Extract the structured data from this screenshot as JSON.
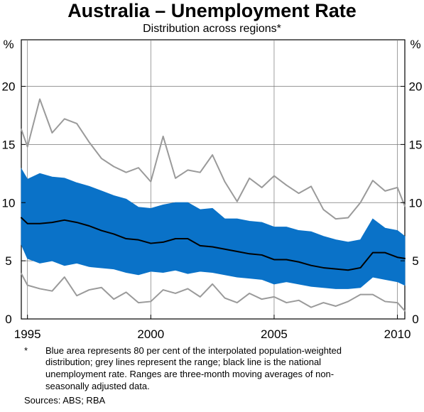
{
  "chart_data": {
    "type": "area",
    "title": "Australia – Unemployment Rate",
    "subtitle": "Distribution across regions*",
    "left_unit": "%",
    "right_unit": "%",
    "x_ticks": [
      "1995",
      "2000",
      "2005",
      "2010"
    ],
    "y_ticks": [
      0,
      5,
      10,
      15,
      20
    ],
    "ylim": [
      0,
      24
    ],
    "xlim": [
      1994.75,
      2010.3
    ],
    "grid": true,
    "footnote_marker": "*",
    "footnote_lines": [
      "Blue area represents 80 per cent of the interpolated population-weighted",
      "distribution; grey lines represent the range; black line is the national",
      "unemployment rate. Ranges are three-month moving averages of non-",
      "seasonally adjusted data."
    ],
    "sources": "Sources: ABS; RBA",
    "colors": {
      "area": "#0a72c8",
      "range": "#9a9a9a",
      "national": "#000000",
      "grid": "#777777"
    },
    "series": [
      {
        "key": "max",
        "x": [
          1994.75,
          1995.0,
          1995.5,
          1996.0,
          1996.5,
          1997.0,
          1997.5,
          1998.0,
          1998.5,
          1999.0,
          1999.5,
          2000.0,
          2000.5,
          2001.0,
          2001.5,
          2002.0,
          2002.5,
          2003.0,
          2003.5,
          2004.0,
          2004.5,
          2005.0,
          2005.5,
          2006.0,
          2006.5,
          2007.0,
          2007.5,
          2008.0,
          2008.5,
          2009.0,
          2009.5,
          2010.0,
          2010.3
        ],
        "values": [
          16.3,
          14.8,
          18.9,
          16.0,
          17.2,
          16.8,
          15.2,
          13.8,
          13.1,
          12.6,
          13.0,
          11.8,
          15.7,
          12.1,
          12.8,
          12.6,
          14.1,
          11.8,
          10.1,
          12.1,
          11.3,
          12.3,
          11.5,
          10.8,
          11.4,
          9.4,
          8.6,
          8.7,
          10.0,
          11.9,
          11.0,
          11.3,
          9.7
        ]
      },
      {
        "key": "p90",
        "x": [
          1994.75,
          1995.0,
          1995.5,
          1996.0,
          1996.5,
          1997.0,
          1997.5,
          1998.0,
          1998.5,
          1999.0,
          1999.5,
          2000.0,
          2000.5,
          2001.0,
          2001.5,
          2002.0,
          2002.5,
          2003.0,
          2003.5,
          2004.0,
          2004.5,
          2005.0,
          2005.5,
          2006.0,
          2006.5,
          2007.0,
          2007.5,
          2008.0,
          2008.5,
          2009.0,
          2009.5,
          2010.0,
          2010.3
        ],
        "values": [
          12.9,
          12.0,
          12.5,
          12.2,
          12.1,
          11.7,
          11.4,
          11.0,
          10.6,
          10.3,
          9.6,
          9.5,
          9.8,
          10.0,
          10.0,
          9.4,
          9.5,
          8.6,
          8.6,
          8.4,
          8.3,
          7.9,
          7.9,
          7.6,
          7.5,
          7.1,
          6.8,
          6.6,
          6.8,
          8.6,
          7.8,
          7.6,
          7.1
        ]
      },
      {
        "key": "national",
        "x": [
          1994.75,
          1995.0,
          1995.5,
          1996.0,
          1996.5,
          1997.0,
          1997.5,
          1998.0,
          1998.5,
          1999.0,
          1999.5,
          2000.0,
          2000.5,
          2001.0,
          2001.5,
          2002.0,
          2002.5,
          2003.0,
          2003.5,
          2004.0,
          2004.5,
          2005.0,
          2005.5,
          2006.0,
          2006.5,
          2007.0,
          2007.5,
          2008.0,
          2008.5,
          2009.0,
          2009.5,
          2010.0,
          2010.3
        ],
        "values": [
          8.7,
          8.2,
          8.2,
          8.3,
          8.5,
          8.3,
          8.0,
          7.6,
          7.3,
          6.9,
          6.8,
          6.5,
          6.6,
          6.9,
          6.9,
          6.3,
          6.2,
          6.0,
          5.8,
          5.6,
          5.5,
          5.1,
          5.1,
          4.9,
          4.6,
          4.4,
          4.3,
          4.2,
          4.4,
          5.7,
          5.7,
          5.3,
          5.2
        ]
      },
      {
        "key": "p10",
        "x": [
          1994.75,
          1995.0,
          1995.5,
          1996.0,
          1996.5,
          1997.0,
          1997.5,
          1998.0,
          1998.5,
          1999.0,
          1999.5,
          2000.0,
          2000.5,
          2001.0,
          2001.5,
          2002.0,
          2002.5,
          2003.0,
          2003.5,
          2004.0,
          2004.5,
          2005.0,
          2005.5,
          2006.0,
          2006.5,
          2007.0,
          2007.5,
          2008.0,
          2008.5,
          2009.0,
          2009.5,
          2010.0,
          2010.3
        ],
        "values": [
          6.4,
          5.2,
          4.8,
          5.0,
          4.6,
          4.8,
          4.5,
          4.4,
          4.3,
          4.0,
          3.8,
          4.1,
          4.0,
          4.2,
          3.9,
          4.1,
          4.0,
          3.8,
          3.6,
          3.5,
          3.4,
          3.0,
          3.2,
          3.0,
          2.8,
          2.7,
          2.6,
          2.6,
          2.7,
          3.6,
          3.4,
          3.2,
          2.9
        ]
      },
      {
        "key": "min",
        "x": [
          1994.75,
          1995.0,
          1995.5,
          1996.0,
          1996.5,
          1997.0,
          1997.5,
          1998.0,
          1998.5,
          1999.0,
          1999.5,
          2000.0,
          2000.5,
          2001.0,
          2001.5,
          2002.0,
          2002.5,
          2003.0,
          2003.5,
          2004.0,
          2004.5,
          2005.0,
          2005.5,
          2006.0,
          2006.5,
          2007.0,
          2007.5,
          2008.0,
          2008.5,
          2009.0,
          2009.5,
          2010.0,
          2010.3
        ],
        "values": [
          3.9,
          2.9,
          2.6,
          2.4,
          3.6,
          2.0,
          2.5,
          2.7,
          1.7,
          2.3,
          1.4,
          1.5,
          2.5,
          2.2,
          2.6,
          1.9,
          3.0,
          1.8,
          1.4,
          2.2,
          1.7,
          1.9,
          1.4,
          1.6,
          1.0,
          1.4,
          1.1,
          1.5,
          2.1,
          2.1,
          1.5,
          1.4,
          0.7
        ]
      }
    ]
  }
}
